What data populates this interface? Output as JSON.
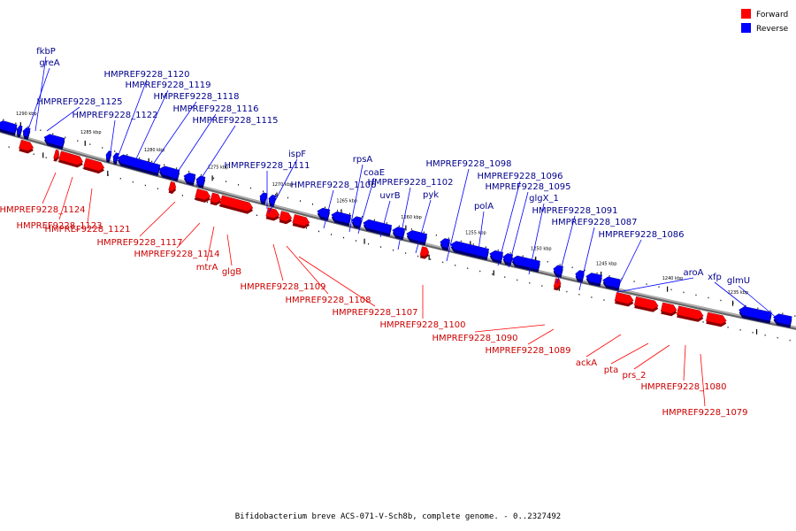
{
  "caption": "Bifidobacterium breve ACS-071-V-Sch8b, complete genome. - 0..2327492",
  "legend": [
    {
      "label": "Forward",
      "color": "#ff0000"
    },
    {
      "label": "Reverse",
      "color": "#0000ff"
    }
  ],
  "colors": {
    "forward": "#ff0000",
    "reverse": "#0000ff",
    "backbone": "#888888",
    "forward_label": "#cc0000",
    "reverse_label": "#00008b"
  },
  "ticks": [
    "1290 kbp",
    "1285 kbp",
    "1280 kbp",
    "1275 kbp",
    "1270 kbp",
    "1265 kbp",
    "1260 kbp",
    "1255 kbp",
    "1250 kbp",
    "1245 kbp",
    "1240 kbp",
    "1235 kbp"
  ],
  "genes": {
    "reverse": [
      "fkbP",
      "greA",
      "HMPREF9228_1125",
      "HMPREF9228_1122",
      "HMPREF9228_1120",
      "HMPREF9228_1119",
      "HMPREF9228_1118",
      "HMPREF9228_1116",
      "HMPREF9228_1115",
      "ispF",
      "HMPREF9228_1111",
      "HMPREF9228_1106",
      "rpsA",
      "coaE",
      "uvrB",
      "HMPREF9228_1102",
      "pyk",
      "HMPREF9228_1098",
      "polA",
      "HMPREF9228_1096",
      "HMPREF9228_1095",
      "glgX_1",
      "HMPREF9228_1091",
      "HMPREF9228_1087",
      "HMPREF9228_1086",
      "aroA",
      "xfp",
      "glmU"
    ],
    "forward": [
      "HMPREF9228_1124",
      "HMPREF9228_1123",
      "HMPREF9228_1121",
      "HMPREF9228_1117",
      "HMPREF9228_1114",
      "mtrA",
      "glgB",
      "HMPREF9228_1109",
      "HMPREF9228_1108",
      "HMPREF9228_1107",
      "HMPREF9228_1100",
      "HMPREF9228_1090",
      "HMPREF9228_1089",
      "ackA",
      "pta",
      "prs_2",
      "HMPREF9228_1080",
      "HMPREF9228_1079"
    ]
  }
}
